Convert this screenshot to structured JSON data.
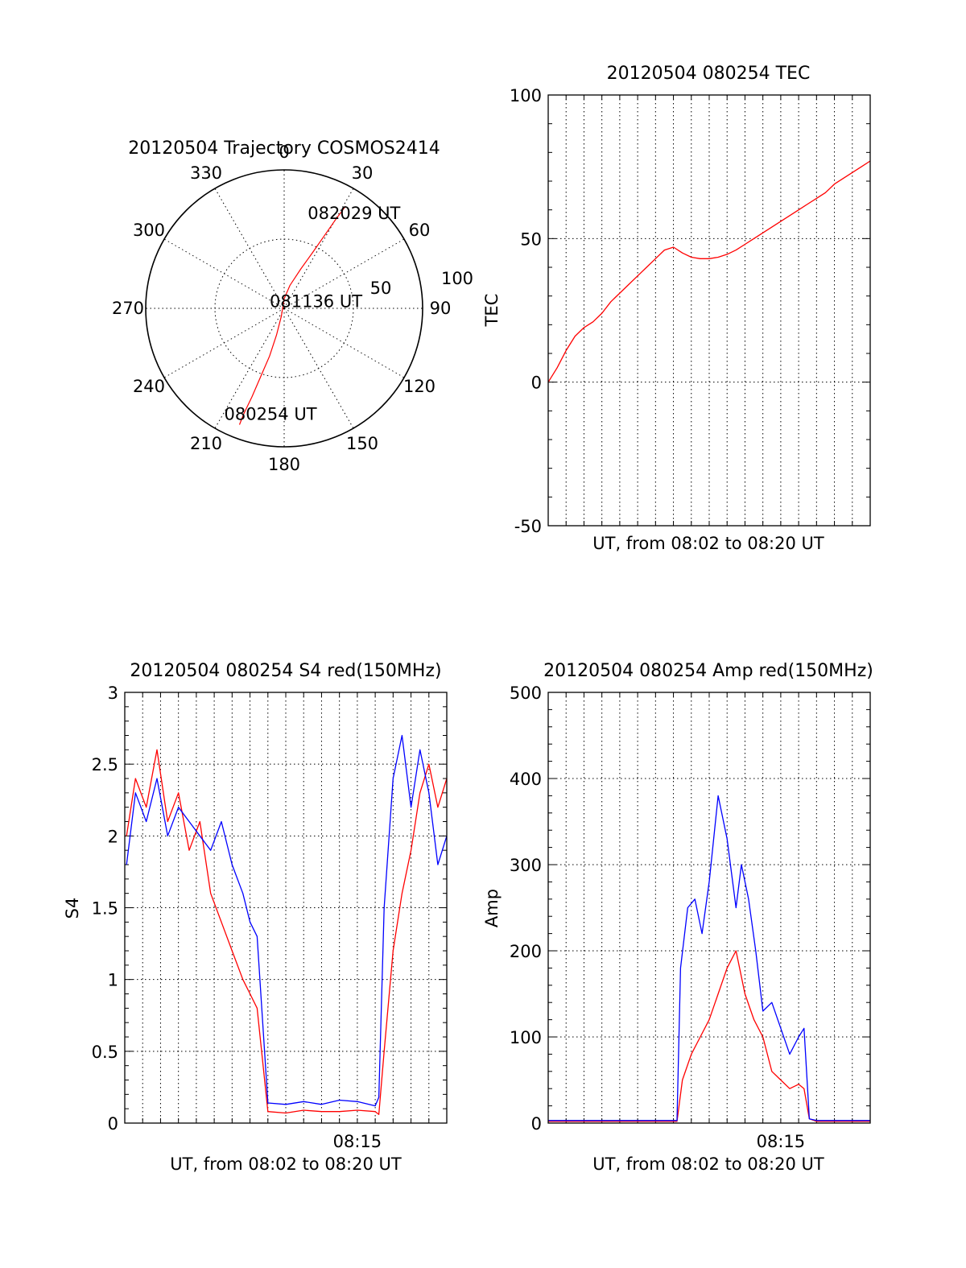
{
  "colors": {
    "red_series": "#ff0000",
    "blue_series": "#0000ff",
    "axis": "#000000",
    "background": "#ffffff"
  },
  "chart_data": [
    {
      "id": "trajectory",
      "type": "scatter",
      "projection": "polar",
      "title": "20120504 Trajectory COSMOS2414",
      "azimuth_labels": [
        "0",
        "30",
        "60",
        "90",
        "120",
        "150",
        "180",
        "210",
        "240",
        "270",
        "300",
        "330"
      ],
      "radius_labels": [
        "50",
        "100"
      ],
      "radius_range": [
        0,
        100
      ],
      "grid": true,
      "series": [
        {
          "color": "#ff0000",
          "points": [
            {
              "azimuth": 31,
              "zenith": 86
            },
            {
              "azimuth": 30,
              "zenith": 73
            },
            {
              "azimuth": 29,
              "zenith": 60
            },
            {
              "azimuth": 27,
              "zenith": 45
            },
            {
              "azimuth": 23,
              "zenith": 31
            },
            {
              "azimuth": 14,
              "zenith": 17
            },
            {
              "azimuth": 0,
              "zenith": 7
            },
            {
              "azimuth": 200,
              "zenith": 6
            },
            {
              "azimuth": 196,
              "zenith": 20
            },
            {
              "azimuth": 197,
              "zenith": 36
            },
            {
              "azimuth": 199,
              "zenith": 52
            },
            {
              "azimuth": 200,
              "zenith": 68
            },
            {
              "azimuth": 201,
              "zenith": 82
            },
            {
              "azimuth": 201,
              "zenith": 90
            }
          ]
        }
      ],
      "annotations": [
        {
          "text": "082029 UT",
          "azimuth": 38,
          "zenith": 82
        },
        {
          "text": "081136 UT",
          "azimuth": 88,
          "zenith": 23
        },
        {
          "text": "080254 UT",
          "azimuth": 187,
          "zenith": 81
        }
      ]
    },
    {
      "id": "tec",
      "type": "line",
      "title": "20120504 080254 TEC",
      "xlabel": "UT, from 08:02 to 08:20 UT",
      "ylabel": "TEC",
      "xlim": [
        0,
        18
      ],
      "ylim": [
        -50,
        100
      ],
      "yticks": [
        -50,
        0,
        50,
        100
      ],
      "grid": true,
      "series": [
        {
          "color": "#ff0000",
          "x": [
            0,
            0.5,
            1,
            1.5,
            2,
            2.5,
            3,
            3.5,
            4,
            4.5,
            5,
            5.5,
            6,
            6.5,
            7,
            7.5,
            8,
            8.5,
            9,
            9.5,
            10,
            10.5,
            11,
            11.5,
            12,
            12.5,
            13,
            13.5,
            14,
            14.5,
            15,
            15.5,
            16,
            16.5,
            17,
            17.5,
            18
          ],
          "y": [
            0,
            5,
            11,
            16,
            19,
            21,
            24,
            28,
            31,
            34,
            37,
            40,
            43,
            46,
            47,
            45,
            43.5,
            43,
            43,
            43.5,
            44.5,
            46,
            48,
            50,
            52,
            54,
            56,
            58,
            60,
            62,
            64,
            66,
            69,
            71,
            73,
            75,
            77
          ]
        }
      ]
    },
    {
      "id": "s4",
      "type": "line",
      "title": "20120504 080254 S4 red(150MHz)",
      "xlabel": "UT, from 08:02 to 08:20 UT",
      "ylabel": "S4",
      "xlim": [
        0,
        18
      ],
      "ylim": [
        0,
        3
      ],
      "yticks": [
        "0",
        "0.5",
        "1",
        "1.5",
        "2",
        "2.5",
        "3"
      ],
      "xtick_labels": [
        {
          "x": 13,
          "label": "08:15"
        }
      ],
      "grid": true,
      "series": [
        {
          "color": "#ff0000",
          "x": [
            0.1,
            0.6,
            1.2,
            1.8,
            2.4,
            3.0,
            3.6,
            4.2,
            4.8,
            5.4,
            6.0,
            6.6,
            7.0,
            7.4,
            8,
            9,
            10,
            11,
            12,
            13,
            14,
            14.2,
            14.5,
            15,
            15.5,
            16,
            16.5,
            17,
            17.5,
            18
          ],
          "y": [
            2.0,
            2.4,
            2.2,
            2.6,
            2.1,
            2.3,
            1.9,
            2.1,
            1.6,
            1.4,
            1.2,
            1.0,
            0.9,
            0.8,
            0.08,
            0.07,
            0.09,
            0.08,
            0.08,
            0.09,
            0.08,
            0.06,
            0.5,
            1.2,
            1.6,
            1.9,
            2.3,
            2.5,
            2.2,
            2.4
          ]
        },
        {
          "color": "#0000ff",
          "x": [
            0.1,
            0.6,
            1.2,
            1.8,
            2.4,
            3.0,
            3.6,
            4.2,
            4.8,
            5.4,
            6.0,
            6.6,
            7.0,
            7.4,
            8,
            9,
            10,
            11,
            12,
            13,
            14,
            14.2,
            14.5,
            15,
            15.5,
            16,
            16.5,
            17,
            17.5,
            18
          ],
          "y": [
            1.8,
            2.3,
            2.1,
            2.4,
            2.0,
            2.2,
            2.1,
            2.0,
            1.9,
            2.1,
            1.8,
            1.6,
            1.4,
            1.3,
            0.14,
            0.13,
            0.15,
            0.13,
            0.16,
            0.15,
            0.12,
            0.18,
            1.5,
            2.4,
            2.7,
            2.2,
            2.6,
            2.3,
            1.8,
            2.0
          ]
        }
      ]
    },
    {
      "id": "amp",
      "type": "line",
      "title": "20120504 080254 Amp red(150MHz)",
      "xlabel": "UT, from 08:02 to 08:20 UT",
      "ylabel": "Amp",
      "xlim": [
        0,
        18
      ],
      "ylim": [
        0,
        500
      ],
      "yticks": [
        "0",
        "100",
        "200",
        "300",
        "400",
        "500"
      ],
      "xtick_labels": [
        {
          "x": 13,
          "label": "08:15"
        }
      ],
      "grid": true,
      "series": [
        {
          "color": "#ff0000",
          "x": [
            0,
            3,
            6,
            7.2,
            7.5,
            8,
            8.5,
            9,
            9.5,
            10,
            10.5,
            11,
            11.5,
            12,
            12.5,
            13,
            13.5,
            14,
            14.3,
            14.6,
            15,
            16,
            17,
            18
          ],
          "y": [
            2,
            2,
            2,
            2,
            50,
            80,
            100,
            120,
            150,
            180,
            200,
            150,
            120,
            100,
            60,
            50,
            40,
            45,
            40,
            5,
            2,
            2,
            2,
            2
          ]
        },
        {
          "color": "#0000ff",
          "x": [
            0,
            3,
            6,
            7.2,
            7.4,
            7.8,
            8.2,
            8.6,
            9,
            9.5,
            10,
            10.5,
            10.8,
            11.2,
            11.6,
            12,
            12.5,
            13,
            13.5,
            14,
            14.3,
            14.6,
            15,
            16,
            17,
            18
          ],
          "y": [
            3,
            3,
            3,
            3,
            180,
            250,
            260,
            220,
            280,
            380,
            330,
            250,
            300,
            260,
            200,
            130,
            140,
            110,
            80,
            100,
            110,
            5,
            3,
            3,
            3,
            3
          ]
        }
      ]
    }
  ]
}
